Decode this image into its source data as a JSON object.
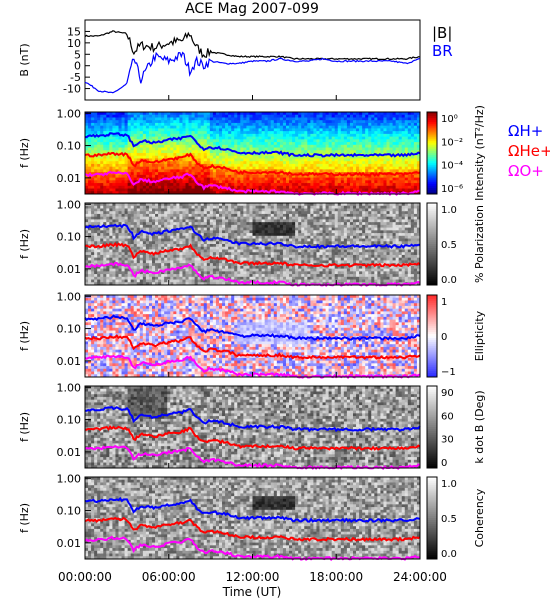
{
  "chart_data": {
    "type": "line",
    "title": "ACE Mag 2007-099",
    "xlabel": "Time (UT)",
    "x_ticks": [
      "00:00:00",
      "06:00:00",
      "12:00:00",
      "18:00:00",
      "24:00:00"
    ],
    "x_range_hours": [
      0,
      24
    ],
    "time_hours": [
      0,
      1,
      2,
      3,
      3.5,
      4,
      5,
      6,
      7,
      7.5,
      8,
      8.5,
      9,
      10,
      11,
      12,
      13,
      14,
      15,
      16,
      17,
      18,
      19,
      20,
      21,
      22,
      23,
      24
    ],
    "panels": [
      {
        "id": "b-field",
        "ylabel": "B (nT)",
        "ylim": [
          -15,
          20
        ],
        "y_ticks": [
          "15",
          "10",
          "5",
          "0",
          "-5",
          "-10"
        ],
        "legend": [
          "|B|",
          "BR"
        ],
        "series": [
          {
            "name": "|B|",
            "color": "#000000",
            "values": [
              13,
              13,
              15,
              14,
              6,
              9,
              8,
              10,
              11,
              14,
              8,
              5,
              6,
              5,
              4,
              4,
              4,
              4,
              3,
              3,
              3,
              3,
              3,
              3,
              3,
              3,
              3,
              4
            ]
          },
          {
            "name": "BR",
            "color": "#0000ff",
            "values": [
              -7,
              -11,
              -12,
              -8,
              3,
              -6,
              4,
              2,
              5,
              -2,
              2,
              0,
              2,
              1,
              1,
              2,
              2,
              3,
              2,
              2,
              3,
              2,
              2,
              2,
              2,
              2,
              1,
              3
            ]
          }
        ]
      },
      {
        "id": "intensity",
        "ylabel": "f (Hz)",
        "y_ticks": [
          "1.00",
          "0.10",
          "0.01"
        ],
        "colorbar": {
          "label": "Intensity (nT²/Hz)",
          "ticks": [
            "10⁰",
            "10⁻²",
            "10⁻⁴",
            "10⁻⁶"
          ]
        },
        "legend": [
          "ΩH+",
          "ΩHe+",
          "ΩO+"
        ]
      },
      {
        "id": "polarization",
        "ylabel": "f (Hz)",
        "y_ticks": [
          "1.00",
          "0.10",
          "0.01"
        ],
        "colorbar": {
          "label": "% Polarization",
          "ticks": [
            "1.0",
            "0.5",
            "0.0"
          ]
        }
      },
      {
        "id": "ellipticity",
        "ylabel": "f (Hz)",
        "y_ticks": [
          "1.00",
          "0.10",
          "0.01"
        ],
        "colorbar": {
          "label": "Ellipticity",
          "ticks": [
            "1",
            "0",
            "−1"
          ]
        }
      },
      {
        "id": "k-dot-b",
        "ylabel": "f (Hz)",
        "y_ticks": [
          "1.00",
          "0.10",
          "0.01"
        ],
        "colorbar": {
          "label": "k dot B (Deg)",
          "ticks": [
            "90",
            "60",
            "30",
            "0"
          ]
        }
      },
      {
        "id": "coherency",
        "ylabel": "f (Hz)",
        "y_ticks": [
          "1.00",
          "0.10",
          "0.01"
        ],
        "colorbar": {
          "label": "Coherency",
          "ticks": [
            "1.0",
            "0.5",
            "0.0"
          ]
        }
      }
    ],
    "gyrofrequency_lines": [
      {
        "name": "ΩH+",
        "color": "#0000ff",
        "values": [
          0.2,
          0.2,
          0.23,
          0.21,
          0.09,
          0.14,
          0.12,
          0.15,
          0.17,
          0.21,
          0.12,
          0.08,
          0.09,
          0.08,
          0.06,
          0.06,
          0.06,
          0.06,
          0.05,
          0.05,
          0.05,
          0.05,
          0.05,
          0.05,
          0.05,
          0.05,
          0.05,
          0.06
        ]
      },
      {
        "name": "ΩHe+",
        "color": "#ff0000",
        "values": [
          0.05,
          0.05,
          0.057,
          0.053,
          0.023,
          0.035,
          0.03,
          0.038,
          0.043,
          0.053,
          0.03,
          0.02,
          0.023,
          0.02,
          0.015,
          0.015,
          0.015,
          0.015,
          0.013,
          0.013,
          0.013,
          0.013,
          0.013,
          0.013,
          0.013,
          0.013,
          0.013,
          0.015
        ]
      },
      {
        "name": "ΩO+",
        "color": "#ff00ff",
        "values": [
          0.0125,
          0.0125,
          0.0143,
          0.0133,
          0.0058,
          0.0088,
          0.0075,
          0.0095,
          0.0108,
          0.0133,
          0.0075,
          0.005,
          0.0058,
          0.005,
          0.0038,
          0.0038,
          0.0038,
          0.0038,
          0.0033,
          0.0033,
          0.0033,
          0.0033,
          0.0033,
          0.0033,
          0.0033,
          0.0033,
          0.0033,
          0.0038
        ]
      }
    ]
  }
}
